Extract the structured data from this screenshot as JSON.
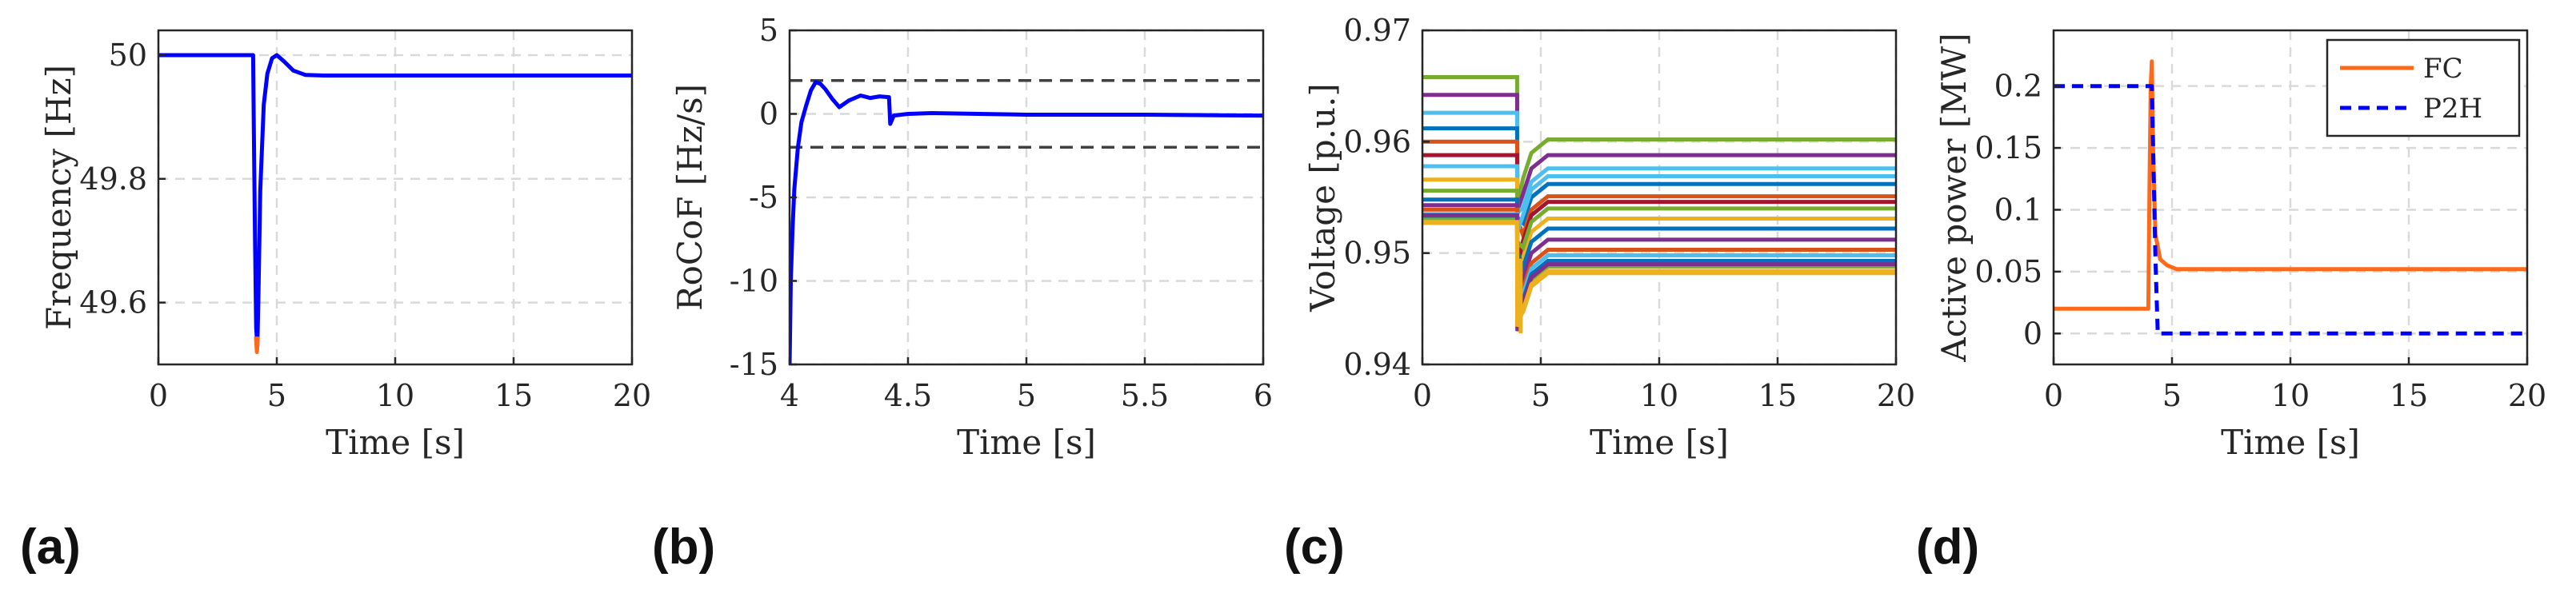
{
  "chart_data": [
    {
      "id": "a",
      "panel_label": "(a)",
      "type": "line",
      "xlabel": "Time [s]",
      "ylabel": "Frequency [Hz]",
      "xlim": [
        0,
        20
      ],
      "ylim": [
        49.5,
        50.04
      ],
      "xticks": [
        0,
        5,
        10,
        15,
        20
      ],
      "xtick_labels": [
        "0",
        "5",
        "10",
        "15",
        "20"
      ],
      "yticks": [
        49.6,
        49.8,
        50
      ],
      "ytick_labels": [
        "49.6",
        "49.8",
        "50"
      ],
      "grid": true,
      "hlines": [],
      "series": [
        {
          "name": "frequency",
          "color": "#0000ff",
          "dash": "solid",
          "x": [
            0,
            4.0,
            4.03,
            4.08,
            4.13,
            4.18,
            4.22,
            4.3,
            4.45,
            4.6,
            4.8,
            5.0,
            5.3,
            5.7,
            6.2,
            7,
            20
          ],
          "y": [
            50.0,
            50.0,
            49.88,
            49.7,
            49.56,
            49.53,
            49.6,
            49.78,
            49.92,
            49.97,
            49.995,
            50.0,
            49.99,
            49.975,
            49.968,
            49.967,
            49.967
          ]
        },
        {
          "name": "frequency-nadir",
          "color": "#ff6a1a",
          "dash": "solid",
          "x": [
            4.12,
            4.16,
            4.2
          ],
          "y": [
            49.545,
            49.52,
            49.545
          ]
        }
      ]
    },
    {
      "id": "b",
      "panel_label": "(b)",
      "type": "line",
      "xlabel": "Time [s]",
      "ylabel": "RoCoF [Hz/s]",
      "xlim": [
        4,
        6
      ],
      "ylim": [
        -15,
        5
      ],
      "xticks": [
        4,
        4.5,
        5,
        5.5,
        6
      ],
      "xtick_labels": [
        "4",
        "4.5",
        "5",
        "5.5",
        "6"
      ],
      "yticks": [
        -15,
        -10,
        -5,
        0,
        5
      ],
      "ytick_labels": [
        "-15",
        "-10",
        "-5",
        "0",
        "5"
      ],
      "grid": true,
      "hlines": [
        {
          "y": 2,
          "color": "#404040",
          "dash": "dashed"
        },
        {
          "y": -2,
          "color": "#404040",
          "dash": "dashed"
        }
      ],
      "series": [
        {
          "name": "rocof",
          "color": "#0000ff",
          "dash": "solid",
          "x": [
            4.0,
            4.005,
            4.012,
            4.02,
            4.035,
            4.05,
            4.07,
            4.09,
            4.11,
            4.13,
            4.15,
            4.18,
            4.21,
            4.25,
            4.3,
            4.34,
            4.38,
            4.42,
            4.425,
            4.44,
            4.5,
            4.6,
            4.8,
            5.0,
            5.5,
            6.0
          ],
          "y": [
            -15,
            -10,
            -7,
            -4.5,
            -2,
            -0.5,
            0.5,
            1.4,
            1.9,
            1.8,
            1.5,
            0.9,
            0.4,
            0.8,
            1.1,
            0.95,
            1.05,
            1.0,
            -0.6,
            -0.1,
            0.0,
            0.05,
            0.0,
            -0.05,
            -0.05,
            -0.1
          ]
        }
      ]
    },
    {
      "id": "c",
      "panel_label": "(c)",
      "type": "line",
      "xlabel": "Time [s]",
      "ylabel": "Voltage [p.u.]",
      "xlim": [
        0,
        20
      ],
      "ylim": [
        0.94,
        0.97
      ],
      "xticks": [
        0,
        5,
        10,
        15,
        20
      ],
      "xtick_labels": [
        "0",
        "5",
        "10",
        "15",
        "20"
      ],
      "yticks": [
        0.94,
        0.95,
        0.96,
        0.97
      ],
      "ytick_labels": [
        "0.94",
        "0.95",
        "0.96",
        "0.97"
      ],
      "grid": true,
      "hlines": [],
      "bus_voltages": [
        {
          "color": "#77ac30",
          "pre": 0.9658,
          "post": 0.9602
        },
        {
          "color": "#7e2f8e",
          "pre": 0.9642,
          "post": 0.9588
        },
        {
          "color": "#4dbeee",
          "pre": 0.9626,
          "post": 0.9576
        },
        {
          "color": "#0072bd",
          "pre": 0.9612,
          "post": 0.9562
        },
        {
          "color": "#d95319",
          "pre": 0.96,
          "post": 0.9551
        },
        {
          "color": "#a2142f",
          "pre": 0.9588,
          "post": 0.9546
        },
        {
          "color": "#4dbeee",
          "pre": 0.9578,
          "post": 0.9569
        },
        {
          "color": "#edb120",
          "pre": 0.9566,
          "post": 0.9531
        },
        {
          "color": "#77ac30",
          "pre": 0.9556,
          "post": 0.954
        },
        {
          "color": "#0072bd",
          "pre": 0.9548,
          "post": 0.9522
        },
        {
          "color": "#7e2f8e",
          "pre": 0.9543,
          "post": 0.9512
        },
        {
          "color": "#d95319",
          "pre": 0.9539,
          "post": 0.9503
        },
        {
          "color": "#4dbeee",
          "pre": 0.9535,
          "post": 0.9498
        },
        {
          "color": "#0072bd",
          "pre": 0.9532,
          "post": 0.9493
        },
        {
          "color": "#77ac30",
          "pre": 0.953,
          "post": 0.9488
        },
        {
          "color": "#7e2f8e",
          "pre": 0.9534,
          "post": 0.949
        },
        {
          "color": "#edb120",
          "pre": 0.9528,
          "post": 0.9484
        },
        {
          "color": "#edb120",
          "pre": 0.9527,
          "post": 0.9482
        }
      ],
      "event_time": 4.0,
      "dip": 0.9428,
      "series": []
    },
    {
      "id": "d",
      "panel_label": "(d)",
      "type": "line",
      "xlabel": "Time [s]",
      "ylabel": "Active power [MW]",
      "xlim": [
        0,
        20
      ],
      "ylim": [
        -0.025,
        0.245
      ],
      "xticks": [
        0,
        5,
        10,
        15,
        20
      ],
      "xtick_labels": [
        "0",
        "5",
        "10",
        "15",
        "20"
      ],
      "yticks": [
        0,
        0.05,
        0.1,
        0.15,
        0.2
      ],
      "ytick_labels": [
        "0",
        "0.05",
        "0.1",
        "0.15",
        "0.2"
      ],
      "grid": true,
      "hlines": [],
      "legend": {
        "placement": "top-right",
        "entries": [
          "FC",
          "P2H"
        ]
      },
      "series": [
        {
          "name": "FC",
          "color": "#ff6a1a",
          "dash": "solid",
          "x": [
            0,
            4.0,
            4.05,
            4.1,
            4.15,
            4.2,
            4.3,
            4.5,
            4.8,
            5.2,
            6,
            20
          ],
          "y": [
            0.02,
            0.02,
            0.12,
            0.2,
            0.22,
            0.15,
            0.08,
            0.06,
            0.055,
            0.052,
            0.052,
            0.052
          ]
        },
        {
          "name": "P2H",
          "color": "#0000ff",
          "dash": "dashed",
          "x": [
            0,
            4.05,
            4.15,
            4.3,
            4.4,
            20
          ],
          "y": [
            0.2,
            0.2,
            0.2,
            0.06,
            0.0,
            0.0
          ]
        }
      ]
    }
  ]
}
